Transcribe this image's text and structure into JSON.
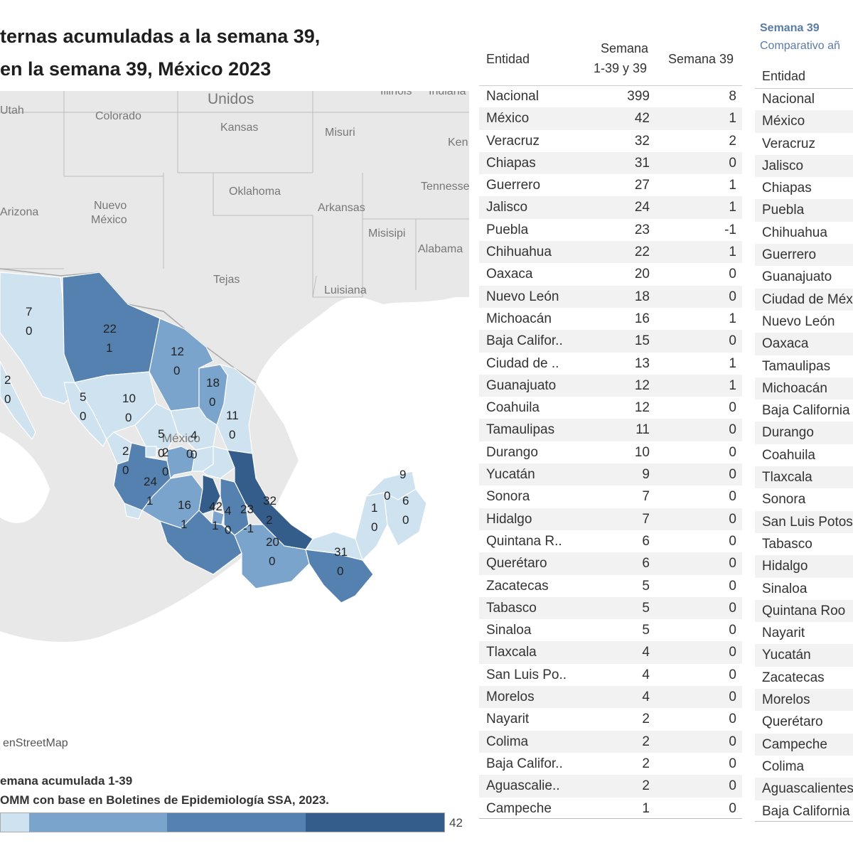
{
  "title": {
    "line1": "ternas acumuladas a la semana 39,",
    "line2": "en la semana 39, México 2023"
  },
  "map": {
    "labels": {
      "unidos": "Unidos",
      "utah": "Utah",
      "colorado": "Colorado",
      "kansas": "Kansas",
      "misuri": "Misuri",
      "illinois": "Illinois",
      "indiana": "Indiana",
      "ken": "Ken",
      "tennessee": "Tennesse",
      "oklahoma": "Oklahoma",
      "arkansas": "Arkansas",
      "misisipi": "Misisipi",
      "alabama": "Alabama",
      "arizona": "Arizona",
      "nuevo_mexico_1": "Nuevo",
      "nuevo_mexico_2": "México",
      "tejas": "Tejas",
      "luisiana": "Luisiana",
      "mexico": "México"
    },
    "attribution": "enStreetMap",
    "states": [
      {
        "n": "7",
        "s": "0"
      },
      {
        "n": "22",
        "s": "1"
      },
      {
        "n": "12",
        "s": "0"
      },
      {
        "n": "2",
        "s": "0"
      },
      {
        "n": "18",
        "s": "0"
      },
      {
        "n": "5",
        "s": "0"
      },
      {
        "n": "10",
        "s": "0"
      },
      {
        "n": "11",
        "s": "0"
      },
      {
        "n": "5",
        "s": "0"
      },
      {
        "n": "4",
        "s": "0"
      },
      {
        "n": "2",
        "s": "0"
      },
      {
        "n": "2",
        "s": "0"
      },
      {
        "n": "0",
        "s": ""
      },
      {
        "n": "24",
        "s": "1"
      },
      {
        "n": "16",
        "s": "1"
      },
      {
        "n": "42",
        "s": "1"
      },
      {
        "n": "4",
        "s": "0"
      },
      {
        "n": "23",
        "s": "-1"
      },
      {
        "n": "32",
        "s": "2"
      },
      {
        "n": "20",
        "s": "0"
      },
      {
        "n": "31",
        "s": "0"
      },
      {
        "n": "9",
        "s": ""
      },
      {
        "n": "0",
        "s": ""
      },
      {
        "n": "6",
        "s": "0"
      },
      {
        "n": "1",
        "s": "0"
      }
    ]
  },
  "legend": {
    "title": "emana acumulada 1-39",
    "source": "OMM con base en Boletines de Epidemiología SSA, 2023.",
    "max": "42",
    "colors": [
      "#cfe2f0",
      "#a3c6e2",
      "#7ba4cc",
      "#5581b0",
      "#345d8c"
    ]
  },
  "table1": {
    "header_entidad": "Entidad",
    "header_col2_l1": "Semana",
    "header_col2_l2": "1-39 y 39",
    "header_col3": "Semana 39",
    "rows": [
      {
        "e": "Nacional",
        "a": "399",
        "b": "8"
      },
      {
        "e": "México",
        "a": "42",
        "b": "1"
      },
      {
        "e": "Veracruz",
        "a": "32",
        "b": "2"
      },
      {
        "e": "Chiapas",
        "a": "31",
        "b": "0"
      },
      {
        "e": "Guerrero",
        "a": "27",
        "b": "1"
      },
      {
        "e": "Jalisco",
        "a": "24",
        "b": "1"
      },
      {
        "e": "Puebla",
        "a": "23",
        "b": "-1"
      },
      {
        "e": "Chihuahua",
        "a": "22",
        "b": "1"
      },
      {
        "e": "Oaxaca",
        "a": "20",
        "b": "0"
      },
      {
        "e": "Nuevo León",
        "a": "18",
        "b": "0"
      },
      {
        "e": "Michoacán",
        "a": "16",
        "b": "1"
      },
      {
        "e": "Baja Califor..",
        "a": "15",
        "b": "0"
      },
      {
        "e": "Ciudad de ..",
        "a": "13",
        "b": "1"
      },
      {
        "e": "Guanajuato",
        "a": "12",
        "b": "1"
      },
      {
        "e": "Coahuila",
        "a": "12",
        "b": "0"
      },
      {
        "e": "Tamaulipas",
        "a": "11",
        "b": "0"
      },
      {
        "e": "Durango",
        "a": "10",
        "b": "0"
      },
      {
        "e": "Yucatán",
        "a": "9",
        "b": "0"
      },
      {
        "e": "Sonora",
        "a": "7",
        "b": "0"
      },
      {
        "e": "Hidalgo",
        "a": "7",
        "b": "0"
      },
      {
        "e": "Quintana R..",
        "a": "6",
        "b": "0"
      },
      {
        "e": "Querétaro",
        "a": "6",
        "b": "0"
      },
      {
        "e": "Zacatecas",
        "a": "5",
        "b": "0"
      },
      {
        "e": "Tabasco",
        "a": "5",
        "b": "0"
      },
      {
        "e": "Sinaloa",
        "a": "5",
        "b": "0"
      },
      {
        "e": "Tlaxcala",
        "a": "4",
        "b": "0"
      },
      {
        "e": "San Luis Po..",
        "a": "4",
        "b": "0"
      },
      {
        "e": "Morelos",
        "a": "4",
        "b": "0"
      },
      {
        "e": "Nayarit",
        "a": "2",
        "b": "0"
      },
      {
        "e": "Colima",
        "a": "2",
        "b": "0"
      },
      {
        "e": "Baja Califor..",
        "a": "2",
        "b": "0"
      },
      {
        "e": "Aguascalie..",
        "a": "2",
        "b": "0"
      },
      {
        "e": "Campeche",
        "a": "1",
        "b": "0"
      }
    ]
  },
  "table2": {
    "subtitle1": "Semana 39",
    "subtitle2": "Comparativo añ",
    "header_entidad": "Entidad",
    "rows": [
      "Nacional",
      "México",
      "Veracruz",
      "Jalisco",
      "Chiapas",
      "Puebla",
      "Chihuahua",
      "Guerrero",
      "Guanajuato",
      "Ciudad de Méx",
      "Nuevo León",
      "Oaxaca",
      "Tamaulipas",
      "Michoacán",
      "Baja California",
      "Durango",
      "Coahuila",
      "Tlaxcala",
      "Sonora",
      "San Luis Potos",
      "Tabasco",
      "Hidalgo",
      "Sinaloa",
      "Quintana Roo",
      "Nayarit",
      "Yucatán",
      "Zacatecas",
      "Morelos",
      "Querétaro",
      "Campeche",
      "Colima",
      "Aguascalientes",
      "Baja California"
    ]
  }
}
